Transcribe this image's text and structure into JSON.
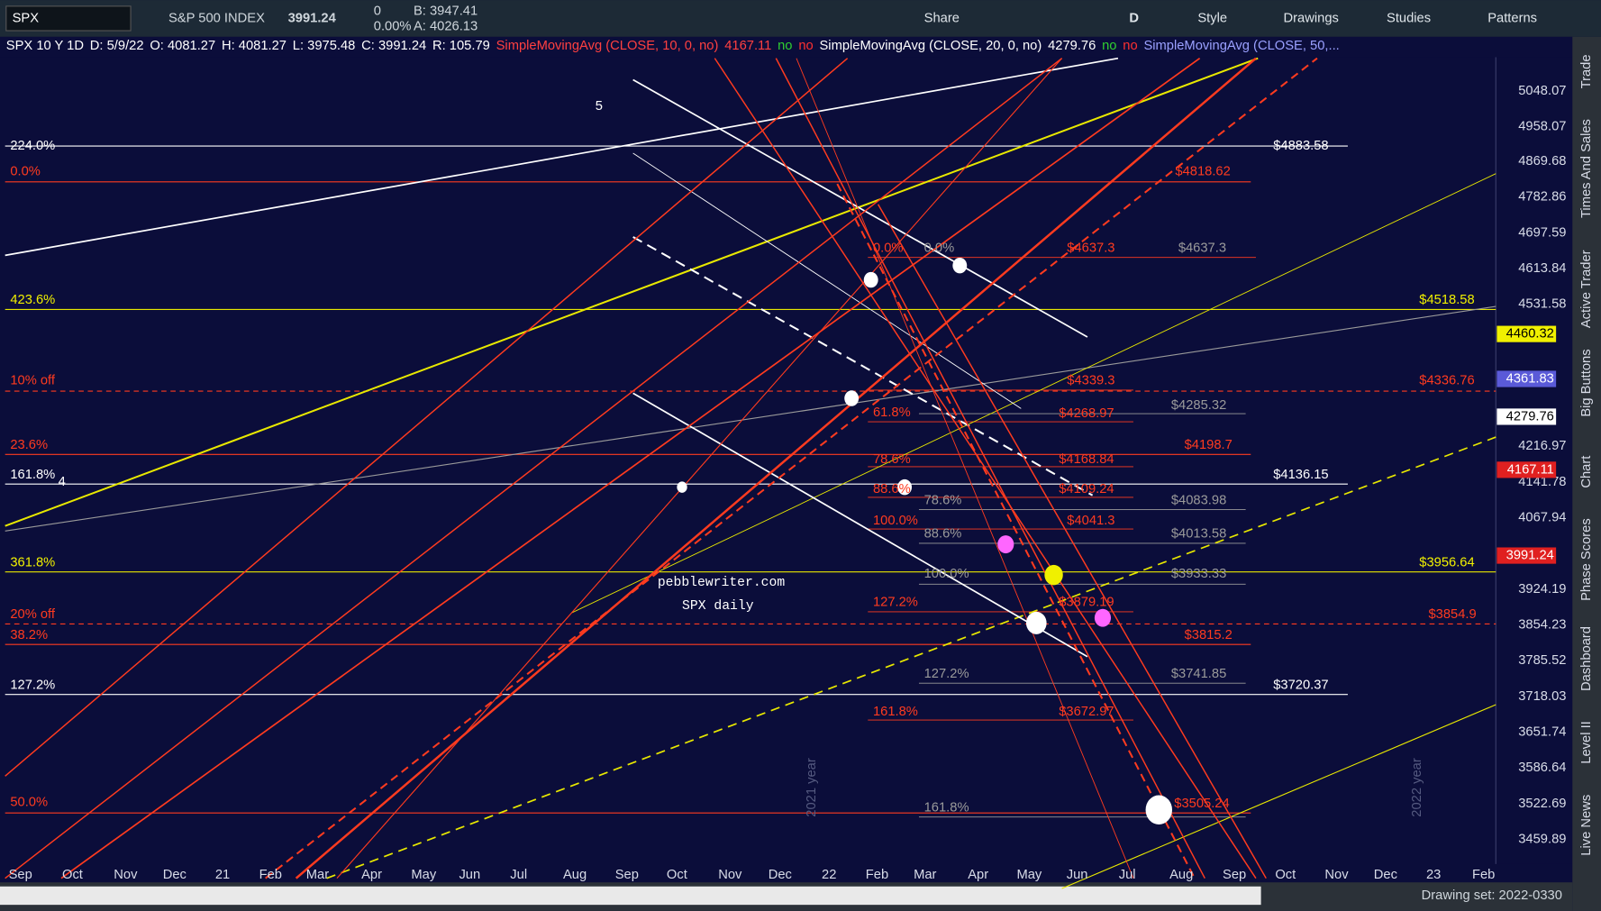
{
  "toolbar": {
    "symbol": "SPX",
    "description": "S&P 500 INDEX",
    "last": "3991.24",
    "change": "0",
    "change_pct": "0.00%",
    "bid": "B: 3947.41",
    "ask": "A: 4026.13",
    "buttons": [
      "Share",
      "D",
      "Style",
      "Drawings",
      "Studies",
      "Patterns"
    ]
  },
  "header": {
    "items": [
      "SPX 10 Y 1D",
      "D: 5/9/22",
      "O: 4081.27",
      "H: 4081.27",
      "L: 3975.48",
      "C: 3991.24",
      "R: 105.79",
      "SimpleMovingAvg (CLOSE, 10, 0, no)",
      "4167.11",
      "no",
      "no",
      "SimpleMovingAvg (CLOSE, 20, 0, no)",
      "4279.76",
      "no",
      "no",
      "SimpleMovingAvg (CLOSE, 50,..."
    ]
  },
  "price_axis": {
    "labels": [
      "5048.07",
      "4958.07",
      "4869.68",
      "4782.86",
      "4697.59",
      "4613.84",
      "4531.58",
      "4216.97",
      "4141.78",
      "4067.94",
      "3924.19",
      "3854.23",
      "3785.52",
      "3718.03",
      "3651.74",
      "3586.64",
      "3522.69",
      "3459.89"
    ],
    "badges": [
      "4460.32",
      "4361.83",
      "4279.76",
      "4167.11",
      "3991.24"
    ]
  },
  "time_axis": [
    "Sep",
    "Oct",
    "Nov",
    "Dec",
    "21",
    "Feb",
    "Mar",
    "Apr",
    "May",
    "Jun",
    "Jul",
    "Aug",
    "Sep",
    "Oct",
    "Nov",
    "Dec",
    "22",
    "Feb",
    "Mar",
    "Apr",
    "May",
    "Jun",
    "Jul",
    "Aug",
    "Sep",
    "Oct",
    "Nov",
    "Dec",
    "23",
    "Feb"
  ],
  "annotations": [
    "224.0%",
    "0.0%",
    "423.6%",
    "10% off",
    "23.6%",
    "161.8%",
    "4",
    "361.8%",
    "20% off",
    "38.2%",
    "127.2%",
    "50.0%",
    "$4883.58",
    "$4818.62",
    "$4637.3",
    "$4637.3",
    "$4518.58",
    "$4339.3",
    "$4336.76",
    "$4285.32",
    "$4268.97",
    "$4198.7",
    "$4168.84",
    "$4136.15",
    "$4109.24",
    "$4083.98",
    "$4041.3",
    "$4013.58",
    "$3956.64",
    "$3933.33",
    "$3879.19",
    "$3854.9",
    "$3815.2",
    "$3741.85",
    "$3720.37",
    "$3672.97",
    "$3505.24",
    "0.0%",
    "0.0%",
    "61.8%",
    "78.6%",
    "88.6%",
    "100.0%",
    "78.6%",
    "88.6%",
    "100.0%",
    "127.2%",
    "127.2%",
    "161.8%",
    "161.8%",
    "5",
    "2021 year",
    "2022 year"
  ],
  "watermark": [
    "pebblewriter.com",
    "SPX daily"
  ],
  "side_tabs": [
    "Trade",
    "Times And Sales",
    "Active Trader",
    "Big Buttons",
    "Chart",
    "Phase Scores",
    "Dashboard",
    "Level II",
    "Live News"
  ],
  "status": "Drawing set: 2022-0330"
}
